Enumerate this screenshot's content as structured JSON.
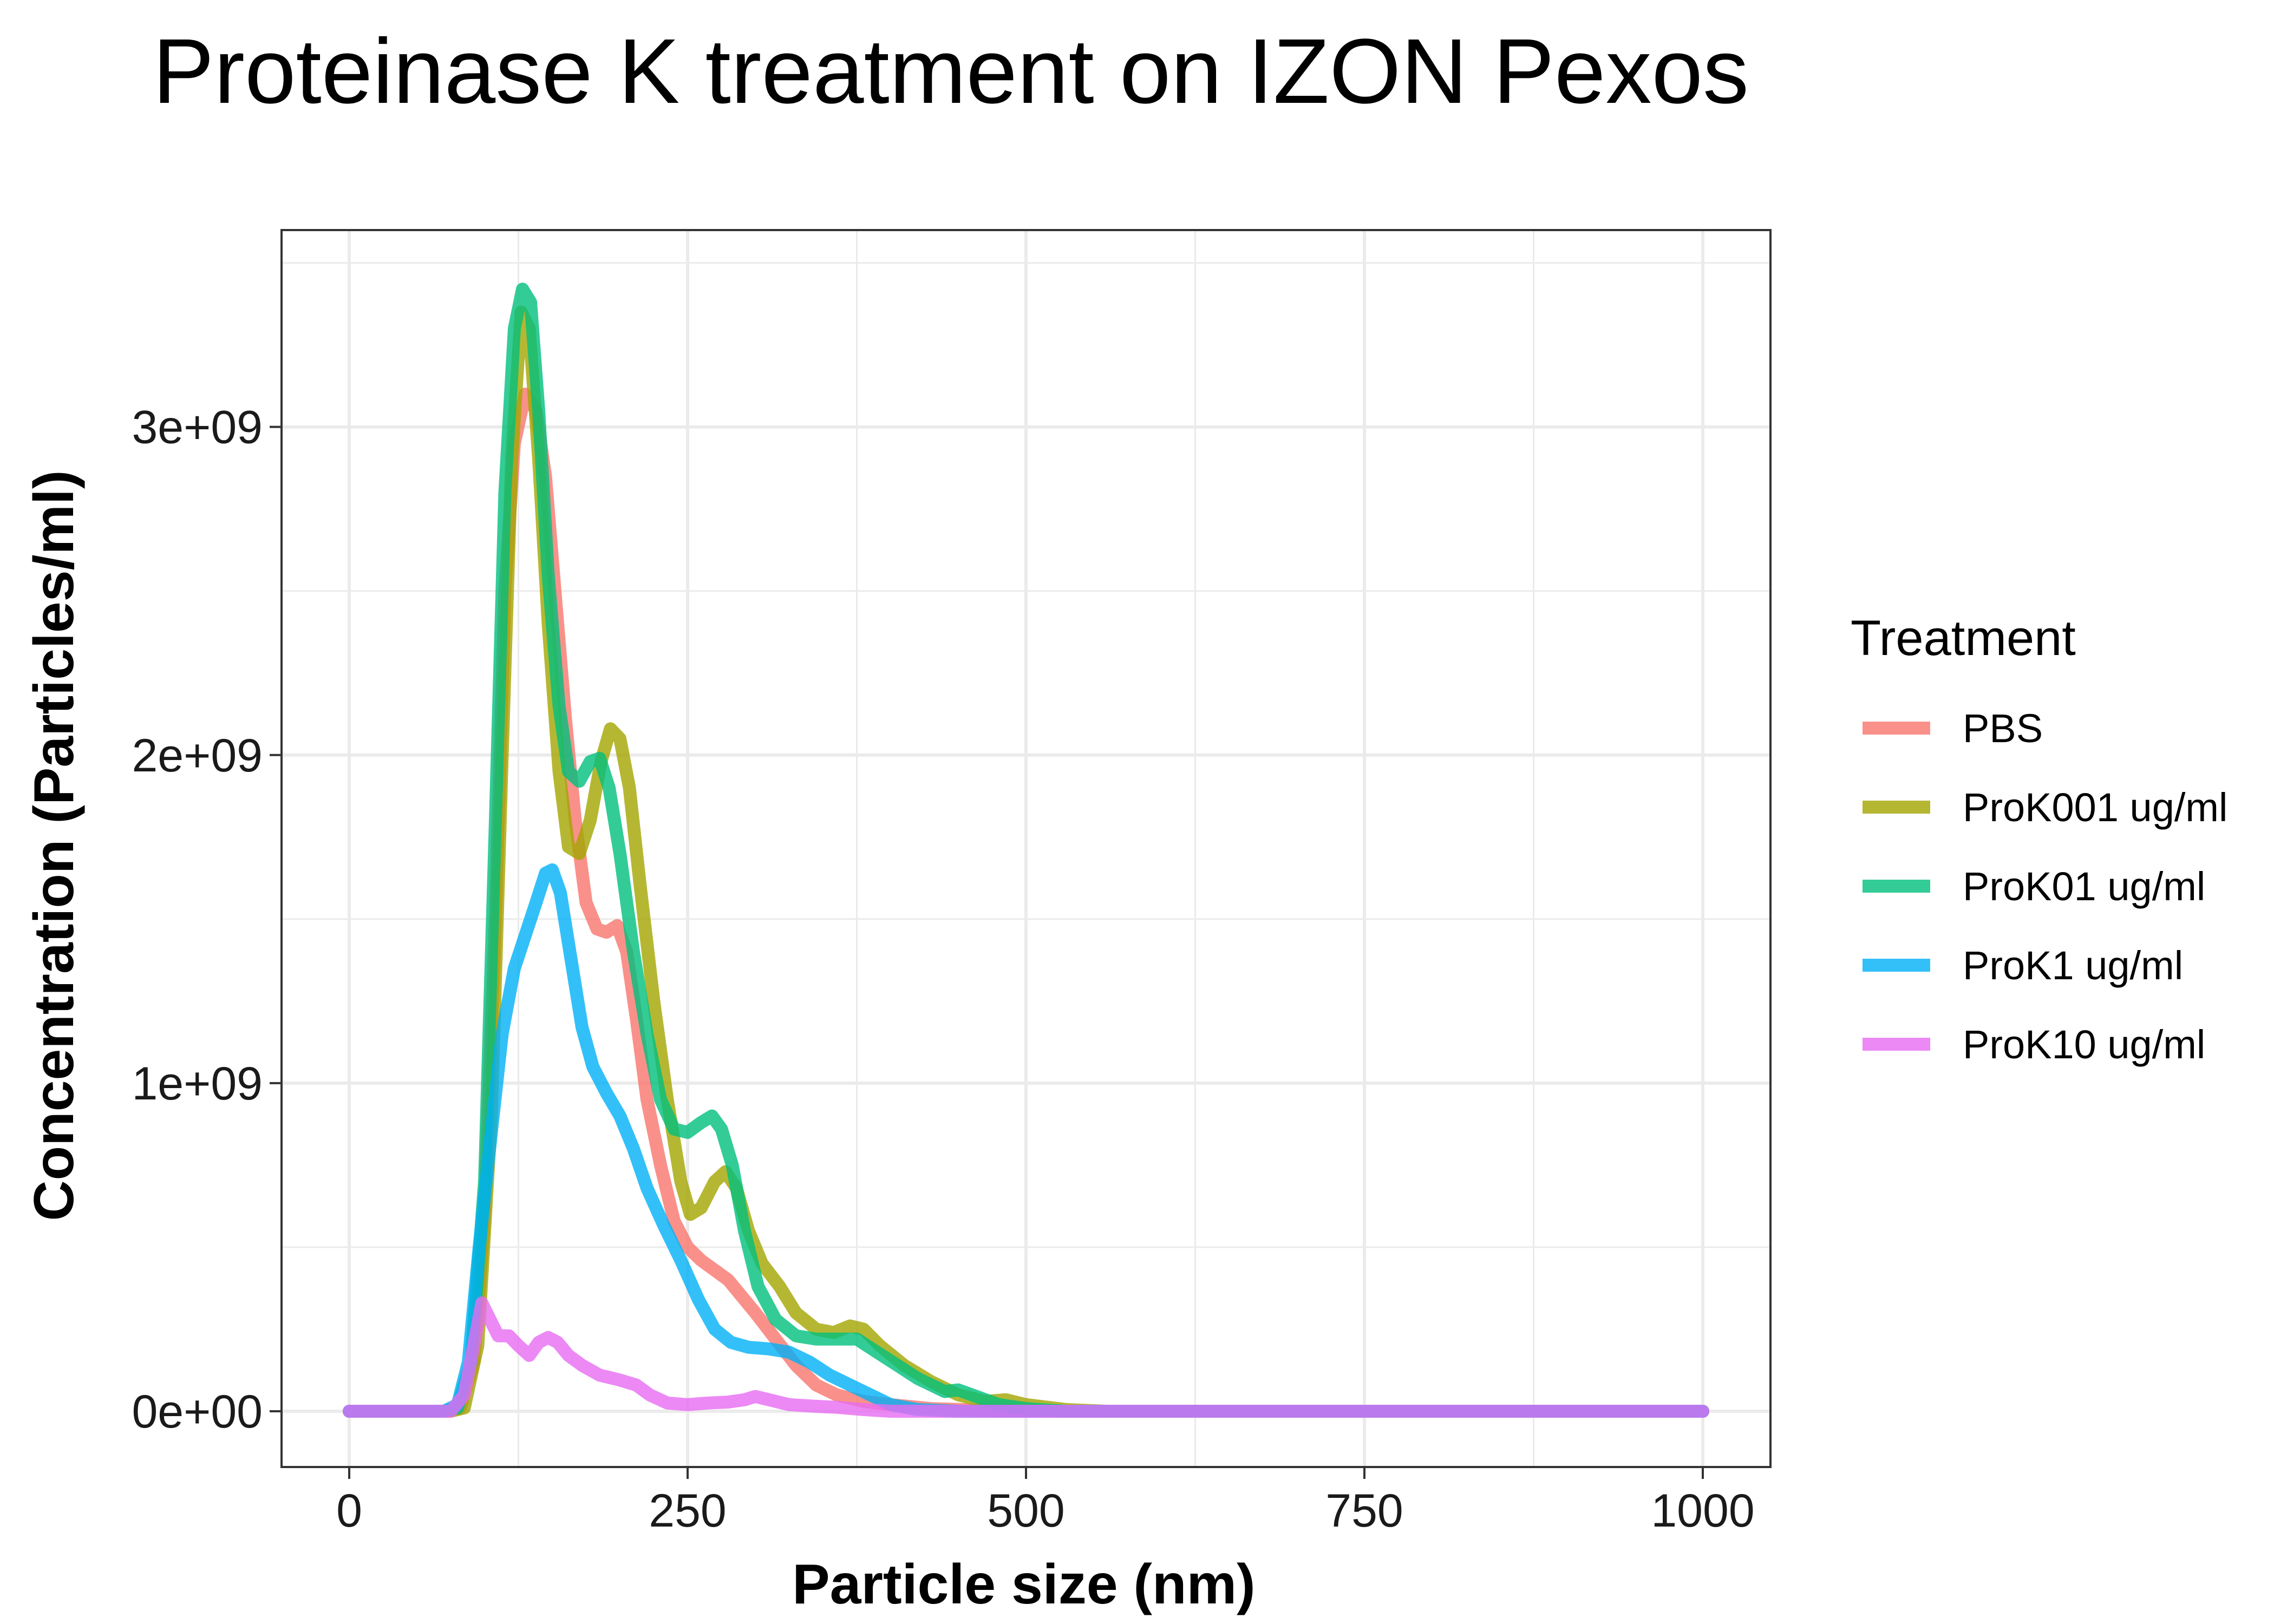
{
  "chart_data": {
    "type": "line",
    "title": "Proteinase K treatment on IZON Pexos",
    "xlabel": "Particle size (nm)",
    "ylabel": "Concentration (Particles/ml)",
    "xlim": [
      -50,
      1050
    ],
    "ylim": [
      -170000000,
      3600000000
    ],
    "x_ticks": [
      0,
      250,
      500,
      750,
      1000
    ],
    "x_tick_labels": [
      "0",
      "250",
      "500",
      "750",
      "1000"
    ],
    "y_ticks": [
      0,
      1000000000,
      2000000000,
      3000000000
    ],
    "y_tick_labels": [
      "0e+00",
      "1e+09",
      "2e+09",
      "3e+09"
    ],
    "grid": true,
    "legend": {
      "title": "Treatment",
      "position": "right"
    },
    "series": [
      {
        "name": "PBS",
        "color": "#F8766D",
        "points": [
          [
            0,
            0
          ],
          [
            70,
            0
          ],
          [
            82,
            10000000
          ],
          [
            92,
            150000000
          ],
          [
            100,
            600000000
          ],
          [
            108,
            1500000000
          ],
          [
            115,
            2500000000
          ],
          [
            122,
            2950000000
          ],
          [
            130,
            3100000000
          ],
          [
            138,
            3050000000
          ],
          [
            145,
            2850000000
          ],
          [
            152,
            2500000000
          ],
          [
            160,
            2100000000
          ],
          [
            167,
            1800000000
          ],
          [
            175,
            1550000000
          ],
          [
            183,
            1470000000
          ],
          [
            190,
            1460000000
          ],
          [
            198,
            1480000000
          ],
          [
            205,
            1400000000
          ],
          [
            212,
            1200000000
          ],
          [
            220,
            950000000
          ],
          [
            230,
            750000000
          ],
          [
            240,
            580000000
          ],
          [
            250,
            500000000
          ],
          [
            260,
            460000000
          ],
          [
            270,
            430000000
          ],
          [
            280,
            400000000
          ],
          [
            290,
            350000000
          ],
          [
            300,
            300000000
          ],
          [
            315,
            220000000
          ],
          [
            330,
            140000000
          ],
          [
            345,
            80000000
          ],
          [
            360,
            50000000
          ],
          [
            380,
            30000000
          ],
          [
            400,
            20000000
          ],
          [
            430,
            8000000
          ],
          [
            470,
            3000000
          ],
          [
            520,
            0
          ],
          [
            1000,
            0
          ]
        ]
      },
      {
        "name": "ProK001 ug/ml",
        "color": "#A3A500",
        "points": [
          [
            0,
            0
          ],
          [
            75,
            0
          ],
          [
            85,
            10000000
          ],
          [
            95,
            200000000
          ],
          [
            105,
            900000000
          ],
          [
            113,
            2000000000
          ],
          [
            120,
            2900000000
          ],
          [
            127,
            3350000000
          ],
          [
            133,
            3300000000
          ],
          [
            140,
            2900000000
          ],
          [
            147,
            2400000000
          ],
          [
            155,
            1950000000
          ],
          [
            162,
            1720000000
          ],
          [
            170,
            1700000000
          ],
          [
            178,
            1800000000
          ],
          [
            186,
            1980000000
          ],
          [
            193,
            2080000000
          ],
          [
            200,
            2050000000
          ],
          [
            207,
            1900000000
          ],
          [
            215,
            1600000000
          ],
          [
            225,
            1250000000
          ],
          [
            235,
            950000000
          ],
          [
            245,
            700000000
          ],
          [
            252,
            600000000
          ],
          [
            260,
            620000000
          ],
          [
            270,
            700000000
          ],
          [
            278,
            730000000
          ],
          [
            286,
            680000000
          ],
          [
            295,
            550000000
          ],
          [
            305,
            450000000
          ],
          [
            318,
            380000000
          ],
          [
            330,
            300000000
          ],
          [
            345,
            250000000
          ],
          [
            358,
            240000000
          ],
          [
            370,
            260000000
          ],
          [
            380,
            250000000
          ],
          [
            392,
            200000000
          ],
          [
            410,
            140000000
          ],
          [
            430,
            90000000
          ],
          [
            450,
            50000000
          ],
          [
            470,
            30000000
          ],
          [
            485,
            35000000
          ],
          [
            500,
            20000000
          ],
          [
            530,
            5000000
          ],
          [
            560,
            0
          ],
          [
            1000,
            0
          ]
        ]
      },
      {
        "name": "ProK01 ug/ml",
        "color": "#00BF7D",
        "points": [
          [
            0,
            0
          ],
          [
            70,
            0
          ],
          [
            80,
            10000000
          ],
          [
            90,
            150000000
          ],
          [
            100,
            700000000
          ],
          [
            108,
            1800000000
          ],
          [
            115,
            2800000000
          ],
          [
            122,
            3300000000
          ],
          [
            128,
            3420000000
          ],
          [
            134,
            3380000000
          ],
          [
            140,
            3050000000
          ],
          [
            147,
            2550000000
          ],
          [
            155,
            2150000000
          ],
          [
            162,
            1950000000
          ],
          [
            170,
            1920000000
          ],
          [
            178,
            1980000000
          ],
          [
            185,
            1990000000
          ],
          [
            192,
            1900000000
          ],
          [
            200,
            1700000000
          ],
          [
            210,
            1400000000
          ],
          [
            220,
            1150000000
          ],
          [
            230,
            950000000
          ],
          [
            240,
            860000000
          ],
          [
            250,
            850000000
          ],
          [
            260,
            880000000
          ],
          [
            268,
            900000000
          ],
          [
            275,
            860000000
          ],
          [
            283,
            750000000
          ],
          [
            292,
            550000000
          ],
          [
            302,
            380000000
          ],
          [
            315,
            280000000
          ],
          [
            330,
            230000000
          ],
          [
            345,
            220000000
          ],
          [
            360,
            220000000
          ],
          [
            375,
            220000000
          ],
          [
            390,
            180000000
          ],
          [
            405,
            140000000
          ],
          [
            420,
            100000000
          ],
          [
            440,
            60000000
          ],
          [
            450,
            65000000
          ],
          [
            460,
            50000000
          ],
          [
            480,
            20000000
          ],
          [
            500,
            8000000
          ],
          [
            530,
            0
          ],
          [
            1000,
            0
          ]
        ]
      },
      {
        "name": "ProK1 ug/ml",
        "color": "#00B0F6",
        "points": [
          [
            0,
            0
          ],
          [
            70,
            0
          ],
          [
            80,
            20000000
          ],
          [
            88,
            150000000
          ],
          [
            96,
            500000000
          ],
          [
            105,
            850000000
          ],
          [
            113,
            1150000000
          ],
          [
            122,
            1350000000
          ],
          [
            130,
            1450000000
          ],
          [
            138,
            1550000000
          ],
          [
            145,
            1640000000
          ],
          [
            150,
            1650000000
          ],
          [
            156,
            1580000000
          ],
          [
            163,
            1400000000
          ],
          [
            172,
            1170000000
          ],
          [
            180,
            1050000000
          ],
          [
            190,
            970000000
          ],
          [
            200,
            900000000
          ],
          [
            210,
            800000000
          ],
          [
            220,
            680000000
          ],
          [
            232,
            570000000
          ],
          [
            245,
            460000000
          ],
          [
            258,
            340000000
          ],
          [
            270,
            250000000
          ],
          [
            282,
            210000000
          ],
          [
            295,
            195000000
          ],
          [
            310,
            190000000
          ],
          [
            325,
            180000000
          ],
          [
            340,
            150000000
          ],
          [
            355,
            110000000
          ],
          [
            370,
            80000000
          ],
          [
            385,
            50000000
          ],
          [
            400,
            20000000
          ],
          [
            420,
            5000000
          ],
          [
            450,
            0
          ],
          [
            1000,
            0
          ]
        ]
      },
      {
        "name": "ProK10 ug/ml",
        "color": "#E76BF3",
        "points": [
          [
            0,
            0
          ],
          [
            75,
            0
          ],
          [
            85,
            50000000
          ],
          [
            92,
            200000000
          ],
          [
            98,
            330000000
          ],
          [
            104,
            280000000
          ],
          [
            110,
            230000000
          ],
          [
            118,
            230000000
          ],
          [
            125,
            200000000
          ],
          [
            133,
            170000000
          ],
          [
            140,
            210000000
          ],
          [
            147,
            225000000
          ],
          [
            154,
            210000000
          ],
          [
            162,
            170000000
          ],
          [
            172,
            140000000
          ],
          [
            185,
            110000000
          ],
          [
            200,
            95000000
          ],
          [
            212,
            80000000
          ],
          [
            222,
            50000000
          ],
          [
            235,
            25000000
          ],
          [
            250,
            20000000
          ],
          [
            265,
            25000000
          ],
          [
            280,
            28000000
          ],
          [
            292,
            35000000
          ],
          [
            300,
            45000000
          ],
          [
            310,
            35000000
          ],
          [
            325,
            20000000
          ],
          [
            345,
            15000000
          ],
          [
            360,
            12000000
          ],
          [
            380,
            5000000
          ],
          [
            400,
            0
          ],
          [
            1000,
            0
          ]
        ]
      }
    ]
  }
}
